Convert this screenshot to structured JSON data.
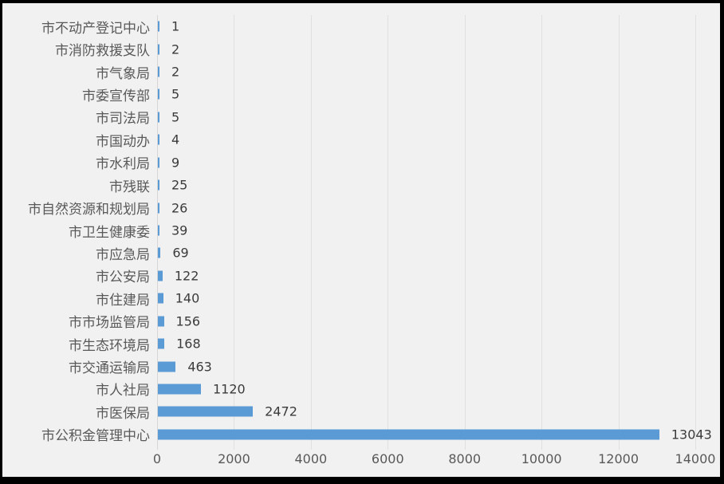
{
  "chart_data": {
    "type": "bar",
    "orientation": "horizontal",
    "title": "",
    "xlabel": "",
    "ylabel": "",
    "categories": [
      "市不动产登记中心",
      "市消防救援支队",
      "市气象局",
      "市委宣传部",
      "市司法局",
      "市国动办",
      "市水利局",
      "市残联",
      "市自然资源和规划局",
      "市卫生健康委",
      "市应急局",
      "市公安局",
      "市住建局",
      "市市场监管局",
      "市生态环境局",
      "市交通运输局",
      "市人社局",
      "市医保局",
      "市公积金管理中心"
    ],
    "values": [
      1,
      2,
      2,
      5,
      5,
      4,
      9,
      25,
      26,
      39,
      69,
      122,
      140,
      156,
      168,
      463,
      1120,
      2472,
      13043
    ],
    "data_labels": [
      "1",
      "2",
      "2",
      "5",
      "5",
      "4",
      "9",
      "25",
      "26",
      "39",
      "69",
      "122",
      "140",
      "156",
      "168",
      "463",
      "1120",
      "2472",
      "13043"
    ],
    "x_ticks": [
      0,
      2000,
      4000,
      6000,
      8000,
      10000,
      12000,
      14000
    ],
    "xlim": [
      0,
      14000
    ],
    "grid": "vertical-major",
    "legend": "none",
    "colors": {
      "bar": "#5B9BD5",
      "background": "#F1F1F1",
      "gridline": "#E0E0E0",
      "axis_line": "#D6D6D6",
      "category_text": "#595959",
      "value_text": "#3B3B3B",
      "frame_border": "#000000"
    }
  }
}
